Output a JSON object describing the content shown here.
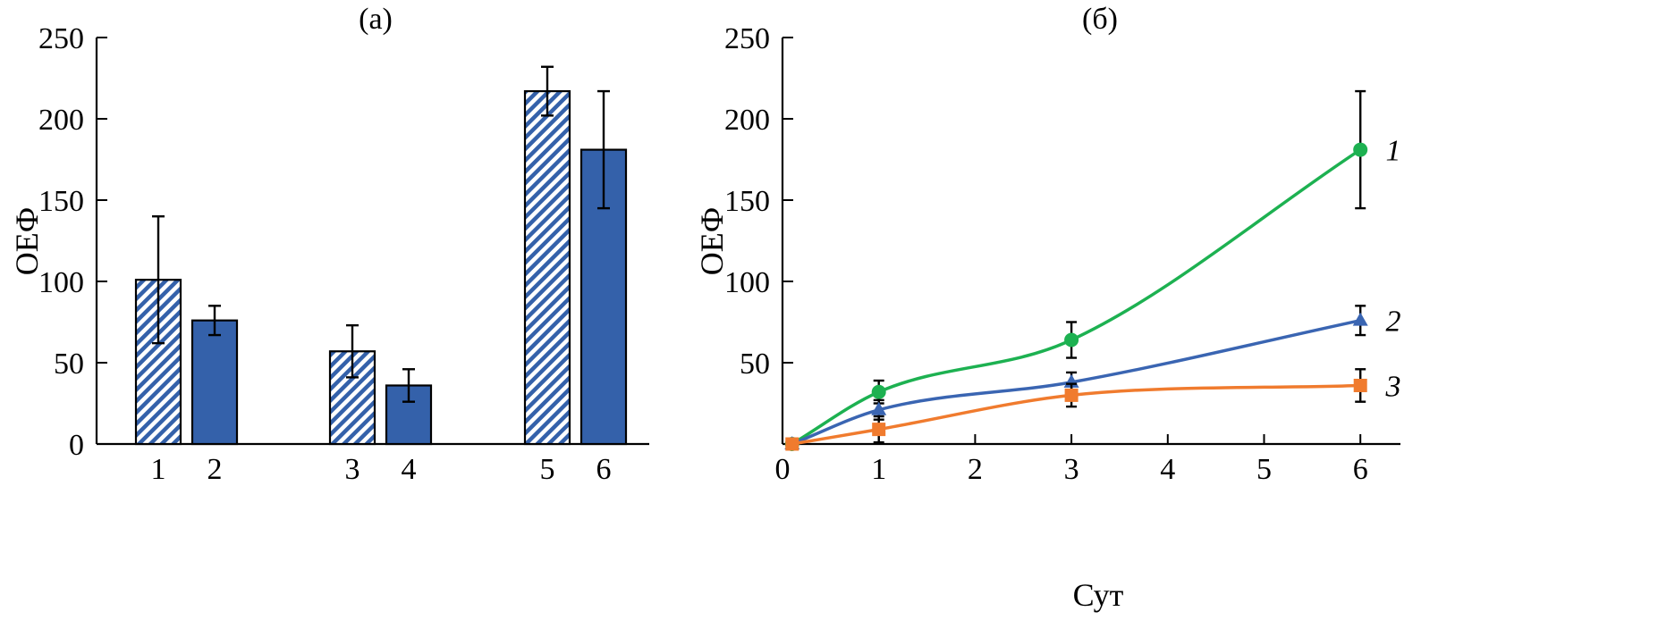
{
  "chart_data": [
    {
      "type": "bar",
      "panel_label": "(а)",
      "ylabel": "ОЕФ",
      "xlabel": "",
      "ylim": [
        0,
        250
      ],
      "yticks": [
        0,
        50,
        100,
        150,
        200,
        250
      ],
      "grid": false,
      "bars": [
        {
          "category": "1",
          "value": 101,
          "error": 39,
          "pattern": "hatched"
        },
        {
          "category": "2",
          "value": 76,
          "error": 9,
          "pattern": "solid"
        },
        {
          "category": "3",
          "value": 57,
          "error": 16,
          "pattern": "hatched"
        },
        {
          "category": "4",
          "value": 36,
          "error": 10,
          "pattern": "solid"
        },
        {
          "category": "5",
          "value": 217,
          "error": 15,
          "pattern": "hatched"
        },
        {
          "category": "6",
          "value": 181,
          "error": 36,
          "pattern": "solid"
        }
      ],
      "bar_color": "#3461aa"
    },
    {
      "type": "line",
      "panel_label": "(б)",
      "ylabel": "ОЕФ",
      "xlabel": "Сут",
      "xlim": [
        0,
        6.4
      ],
      "ylim": [
        0,
        250
      ],
      "xticks": [
        0,
        1,
        2,
        3,
        4,
        5,
        6
      ],
      "yticks": [
        50,
        100,
        150,
        200,
        250
      ],
      "grid": false,
      "series": [
        {
          "label": "1",
          "color": "#1db151",
          "marker": "circle",
          "x": [
            0.1,
            1,
            3,
            6
          ],
          "y": [
            0,
            32,
            64,
            181
          ],
          "err": [
            0,
            7,
            11,
            36
          ]
        },
        {
          "label": "2",
          "color": "#3a65b2",
          "marker": "triangle",
          "x": [
            0.1,
            1,
            3,
            6
          ],
          "y": [
            0,
            21,
            38,
            76
          ],
          "err": [
            0,
            6,
            6,
            9
          ]
        },
        {
          "label": "3",
          "color": "#f07b2e",
          "marker": "square",
          "x": [
            0.1,
            1,
            3,
            6
          ],
          "y": [
            0,
            9,
            30,
            36
          ],
          "err": [
            0,
            8,
            7,
            10
          ]
        }
      ]
    }
  ]
}
